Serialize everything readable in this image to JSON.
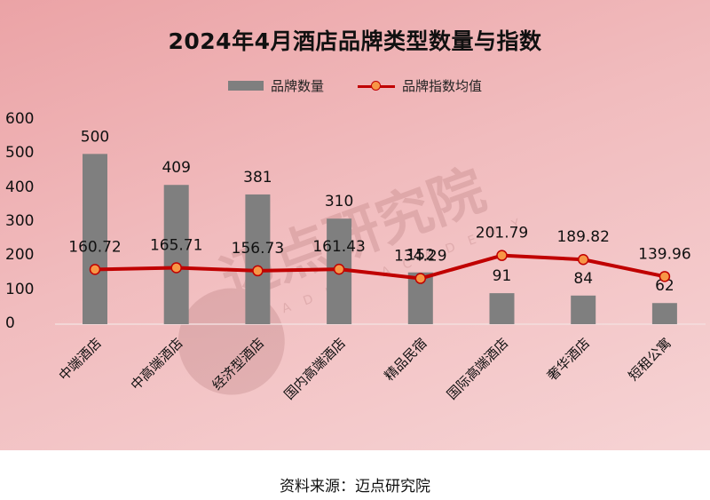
{
  "title": "2024年4月酒店品牌类型数量与指数",
  "legend": {
    "bar_label": "品牌数量",
    "line_label": "品牌指数均值"
  },
  "footer": {
    "source": "资料来源：迈点研究院"
  },
  "watermark": {
    "text": "迈点研究院",
    "subtext": "MEADIN ACADEMY"
  },
  "colors": {
    "bar": "#7f7f7f",
    "line": "#c00000",
    "marker_fill": "#f79646",
    "background_start": "#eba3a6",
    "background_end": "#f6d3d4"
  },
  "chart_data": {
    "type": "bar",
    "title": "2024年4月酒店品牌类型数量与指数",
    "xlabel": "",
    "ylabel": "",
    "ylim": [
      0,
      600
    ],
    "yticks": [
      0,
      100,
      200,
      300,
      400,
      500,
      600
    ],
    "grid": false,
    "legend_position": "top",
    "categories": [
      "中端酒店",
      "中高端酒店",
      "经济型酒店",
      "国内高端酒店",
      "精品民宿",
      "国际高端酒店",
      "奢华酒店",
      "短租公寓"
    ],
    "series": [
      {
        "name": "品牌数量",
        "type": "bar",
        "values": [
          500,
          409,
          381,
          310,
          152,
          91,
          84,
          62
        ]
      },
      {
        "name": "品牌指数均值",
        "type": "line",
        "values": [
          160.72,
          165.71,
          156.73,
          161.43,
          134.29,
          201.79,
          189.82,
          139.96
        ]
      }
    ]
  }
}
